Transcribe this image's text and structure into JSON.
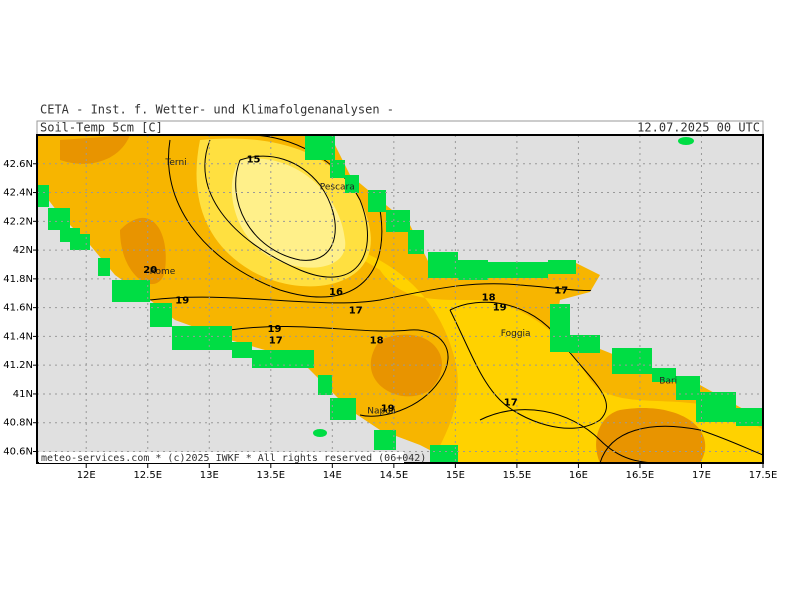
{
  "header": {
    "title": "CETA - Inst. f. Wetter- und Klimafolgenanalysen -",
    "parameter": "Soil-Temp_5cm [C]",
    "valid_time": "12.07.2025 00 UTC"
  },
  "footer": "meteo-services.com * (c)2025 IWKF * All rights reserved (06+042)",
  "map": {
    "xlim": [
      11.6,
      17.5
    ],
    "ylim": [
      40.52,
      42.8
    ],
    "xticks": [
      {
        "value": 12,
        "label": "12E"
      },
      {
        "value": 12.5,
        "label": "12.5E"
      },
      {
        "value": 13,
        "label": "13E"
      },
      {
        "value": 13.5,
        "label": "13.5E"
      },
      {
        "value": 14,
        "label": "14E"
      },
      {
        "value": 14.5,
        "label": "14.5E"
      },
      {
        "value": 15,
        "label": "15E"
      },
      {
        "value": 15.5,
        "label": "15.5E"
      },
      {
        "value": 16,
        "label": "16E"
      },
      {
        "value": 16.5,
        "label": "16.5E"
      },
      {
        "value": 17,
        "label": "17E"
      },
      {
        "value": 17.5,
        "label": "17.5E"
      }
    ],
    "yticks": [
      {
        "value": 40.6,
        "label": "40.6N"
      },
      {
        "value": 40.8,
        "label": "40.8N"
      },
      {
        "value": 41,
        "label": "41N"
      },
      {
        "value": 41.2,
        "label": "41.2N"
      },
      {
        "value": 41.4,
        "label": "41.4N"
      },
      {
        "value": 41.6,
        "label": "41.6N"
      },
      {
        "value": 41.8,
        "label": "41.8N"
      },
      {
        "value": 42,
        "label": "42N"
      },
      {
        "value": 42.2,
        "label": "42.2N"
      },
      {
        "value": 42.4,
        "label": "42.4N"
      },
      {
        "value": 42.6,
        "label": "42.6N"
      }
    ],
    "grid": true,
    "cities": [
      {
        "name": "Terni",
        "lon": 12.73,
        "lat": 42.61
      },
      {
        "name": "Pescara",
        "lon": 14.04,
        "lat": 42.44
      },
      {
        "name": "Rome",
        "lon": 12.62,
        "lat": 41.85
      },
      {
        "name": "Foggia",
        "lon": 15.49,
        "lat": 41.42
      },
      {
        "name": "Napoli",
        "lon": 14.4,
        "lat": 40.88
      },
      {
        "name": "Bari",
        "lon": 16.73,
        "lat": 41.09
      }
    ],
    "contour_labels": [
      {
        "value": 15,
        "lon": 13.36,
        "lat": 42.63
      },
      {
        "value": 16,
        "lon": 14.03,
        "lat": 41.71
      },
      {
        "value": 17,
        "lon": 14.19,
        "lat": 41.58
      },
      {
        "value": 18,
        "lon": 14.36,
        "lat": 41.37
      },
      {
        "value": 19,
        "lon": 12.78,
        "lat": 41.65
      },
      {
        "value": 20,
        "lon": 12.52,
        "lat": 41.86
      },
      {
        "value": 18,
        "lon": 15.27,
        "lat": 41.67
      },
      {
        "value": 19,
        "lon": 15.36,
        "lat": 41.6
      },
      {
        "value": 17,
        "lon": 15.86,
        "lat": 41.72
      },
      {
        "value": 17,
        "lon": 15.45,
        "lat": 40.94
      },
      {
        "value": 19,
        "lon": 14.45,
        "lat": 40.9
      },
      {
        "value": 19,
        "lon": 13.53,
        "lat": 41.45
      },
      {
        "value": 17,
        "lon": 13.54,
        "lat": 41.37
      }
    ]
  }
}
